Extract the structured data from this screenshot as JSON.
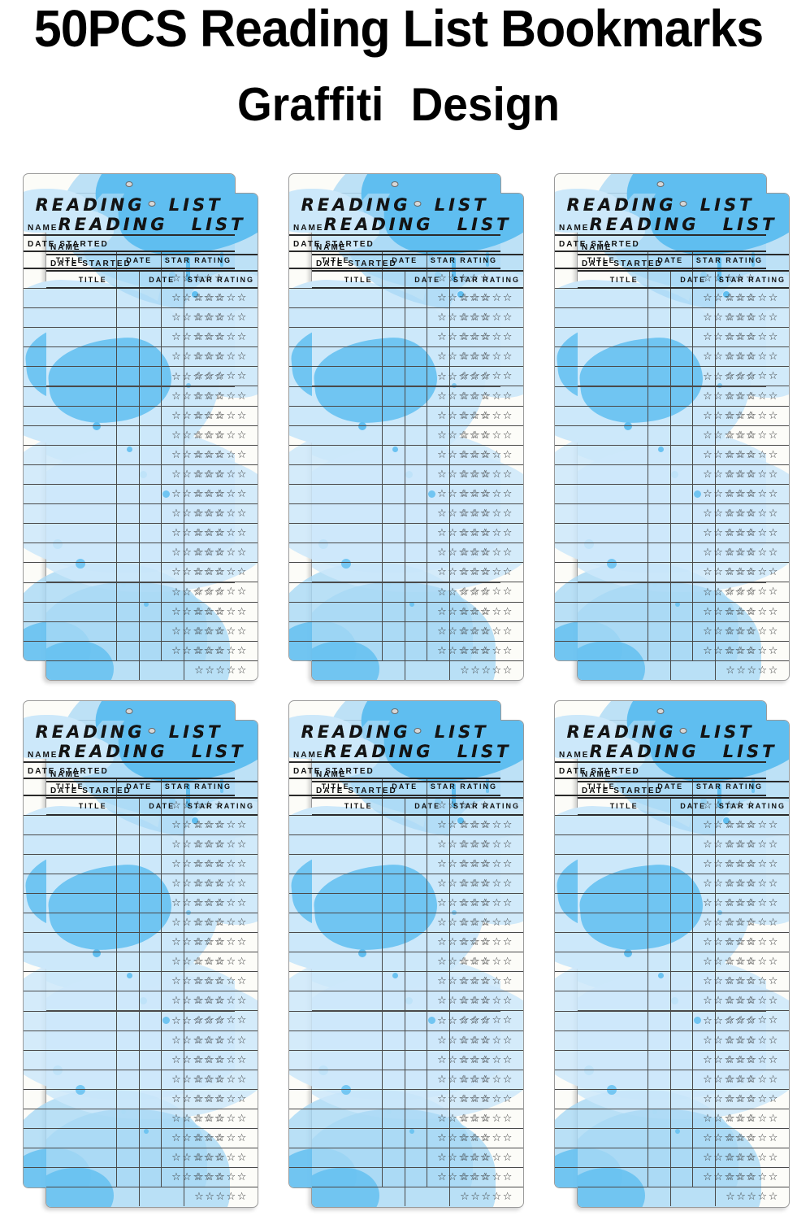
{
  "header": {
    "title_line1": "50PCS Reading List Bookmarks",
    "title_line2": "Graffiti Design"
  },
  "bookmark": {
    "title": "READING LIST",
    "name_label": "NAME",
    "date_started_label": "DATE STARTED",
    "columns": [
      "TITLE",
      "DATE",
      "STAR RATING"
    ],
    "rows": 20,
    "stars_per_row": 5,
    "star_glyph": "☆"
  },
  "layout": {
    "grid_rows": 2,
    "grid_cols": 3,
    "bookmark_pairs": 6,
    "cards_per_pair": 2
  },
  "colors": {
    "splash_blue": "#5FBEF0",
    "splash_light": "#A8D8F5",
    "splash_pale": "#CCE8FA",
    "card_background": "#FCFCF8",
    "line_color": "#2A2A2A",
    "title_color": "#000000"
  }
}
